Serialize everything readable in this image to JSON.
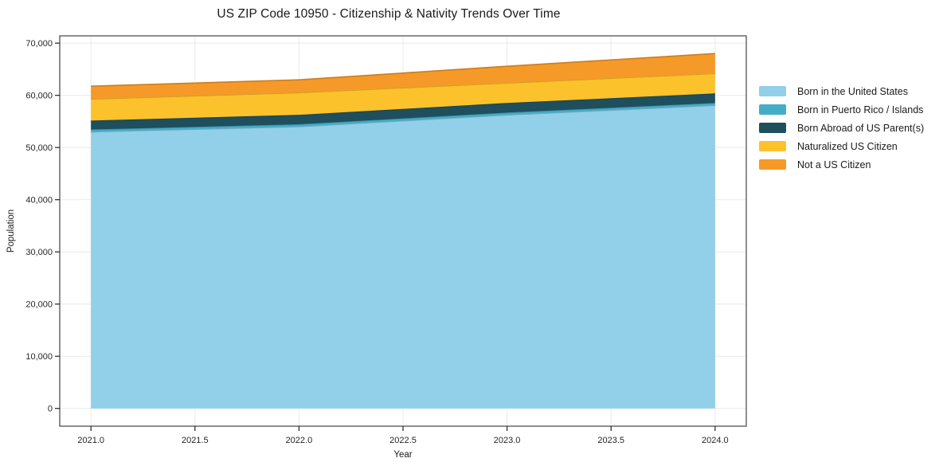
{
  "chart_data": {
    "type": "area",
    "stacked": true,
    "title": "US ZIP Code 10950 - Citizenship & Nativity Trends Over Time",
    "xlabel": "Year",
    "ylabel": "Population",
    "x": [
      2021,
      2022,
      2023,
      2024
    ],
    "series": [
      {
        "name": "Born in the United States",
        "color": "#92CFE8",
        "values": [
          53000,
          54000,
          56240,
          58080
        ]
      },
      {
        "name": "Born in Puerto Rico / Islands",
        "color": "#44ADC7",
        "values": [
          460,
          460,
          460,
          460
        ]
      },
      {
        "name": "Born Abroad of US Parent(s)",
        "color": "#1F4E5C",
        "values": [
          1700,
          1800,
          1840,
          1830
        ]
      },
      {
        "name": "Naturalized US Citizen",
        "color": "#FBC22C",
        "values": [
          4130,
          4260,
          3820,
          3820
        ]
      },
      {
        "name": "Not a US Citizen",
        "color": "#F59A28",
        "values": [
          2460,
          2450,
          3210,
          3820
        ]
      }
    ],
    "totals_by_year": [
      61750,
      62970,
      65570,
      68010
    ],
    "xlim": [
      2020.85,
      2024.15
    ],
    "ylim": [
      -3400,
      71400
    ],
    "xticks": {
      "values": [
        2021.0,
        2021.5,
        2022.0,
        2022.5,
        2023.0,
        2023.5,
        2024.0
      ],
      "labels": [
        "2021.0",
        "2021.5",
        "2022.0",
        "2022.5",
        "2023.0",
        "2023.5",
        "2024.0"
      ]
    },
    "yticks": {
      "values": [
        0,
        10000,
        20000,
        30000,
        40000,
        50000,
        60000,
        70000
      ],
      "labels": [
        "0",
        "10,000",
        "20,000",
        "30,000",
        "40,000",
        "50,000",
        "60,000",
        "70,000"
      ]
    },
    "grid": true,
    "legend_position": "right-top"
  },
  "style": {
    "grid_color": "#e9e9e9",
    "spine_color": "#444444",
    "tick_color": "#222222",
    "tick_text_color": "#262626",
    "background": "#ffffff"
  }
}
